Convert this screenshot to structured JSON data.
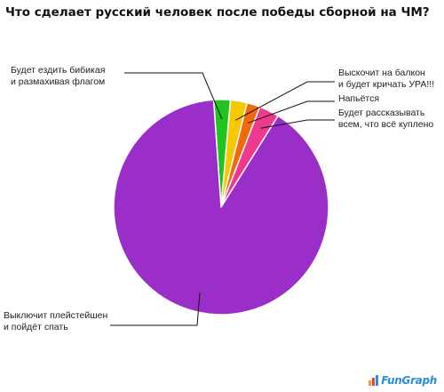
{
  "chart_data": {
    "type": "pie",
    "title": "Что сделает русский человек после победы сборной на ЧМ?",
    "slices": [
      {
        "label_lines": [
          "Будет ездить бибикая",
          "и размахивая флагом"
        ],
        "value": 2.5,
        "color": "#1fc41f"
      },
      {
        "label_lines": [
          "Выскочит на балкон",
          "и будет кричать УРА!!!"
        ],
        "value": 2.5,
        "color": "#f5c800"
      },
      {
        "label_lines": [
          "Напьётся"
        ],
        "value": 2.0,
        "color": "#f06a0c"
      },
      {
        "label_lines": [
          "Будет рассказывать",
          "всем, что всё куплено"
        ],
        "value": 3.0,
        "color": "#ec3a8c"
      },
      {
        "label_lines": [
          "Выключит плейстейшен",
          "и пойдёт спать"
        ],
        "value": 90.0,
        "color": "#9b2ec8"
      }
    ]
  },
  "logo": {
    "text": "FunGraph",
    "mark_colors": [
      "#f39a1e",
      "#e8413c",
      "#2a8fd4"
    ]
  }
}
